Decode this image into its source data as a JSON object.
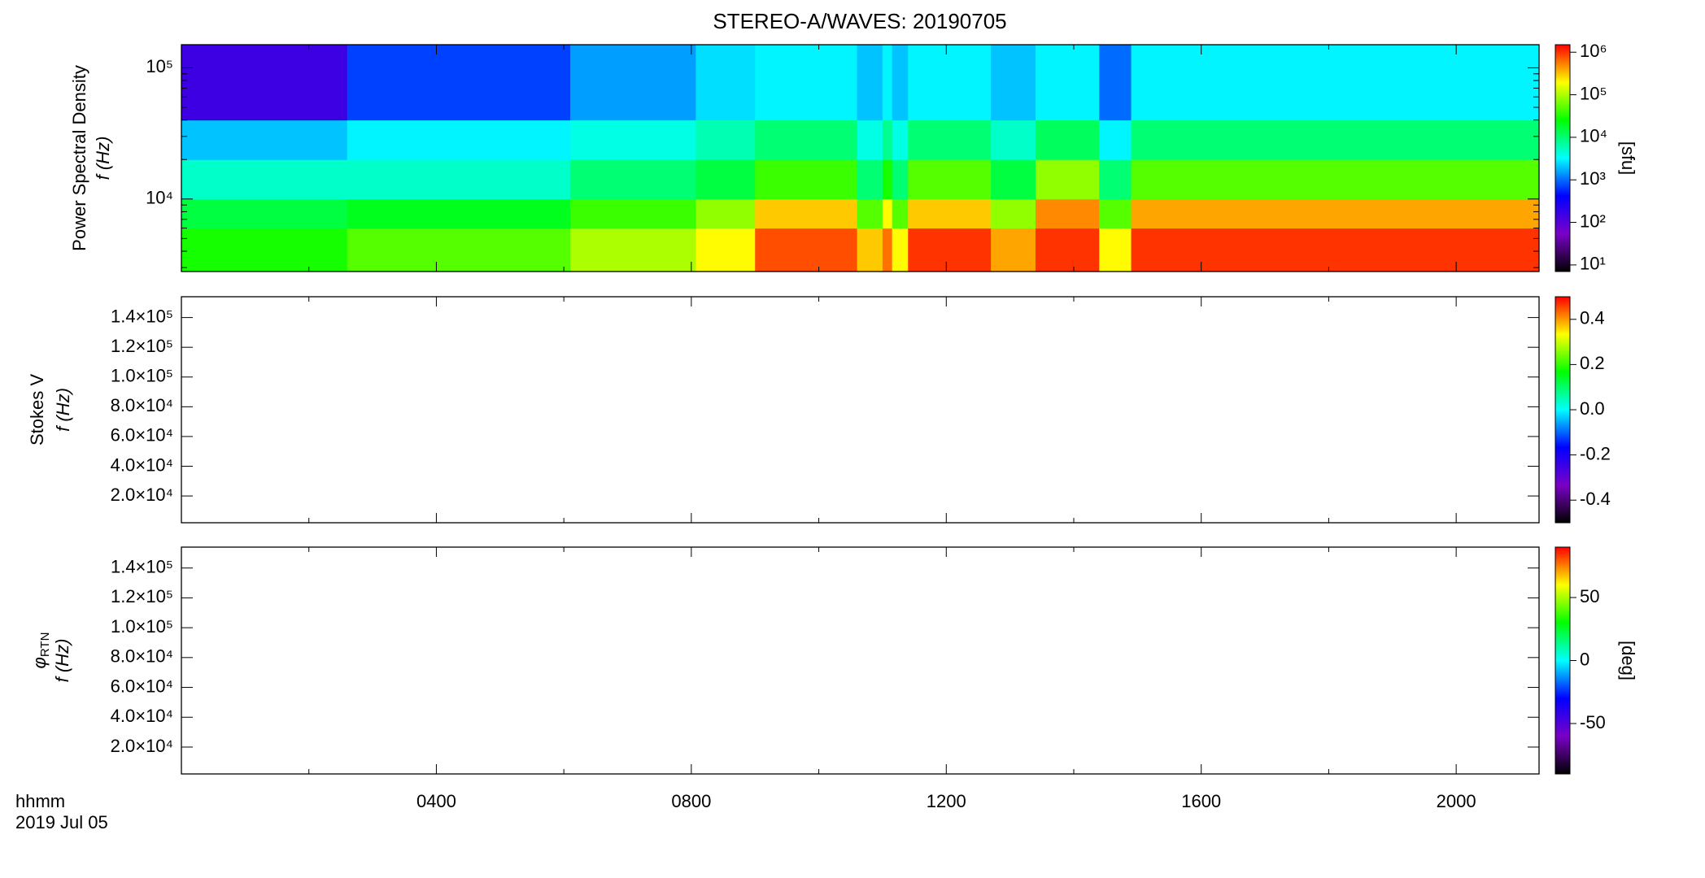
{
  "chart_data": {
    "type": "stacked-spectrogram",
    "title": "STEREO-A/WAVES: 20190705",
    "xlabel": "hhmm",
    "date": "2019 Jul 05",
    "xlim": [
      0,
      21.3
    ],
    "xticks": [
      {
        "value": 4,
        "label": "0400"
      },
      {
        "value": 8,
        "label": "0800"
      },
      {
        "value": 12,
        "label": "1200"
      },
      {
        "value": 16,
        "label": "1600"
      },
      {
        "value": 20,
        "label": "2000"
      }
    ],
    "xminorticks": [
      2,
      6,
      10,
      14,
      18
    ],
    "colormap": [
      "#000000",
      "#7a00c8",
      "#0000ff",
      "#00ffff",
      "#00ff00",
      "#ffff00",
      "#ff0000"
    ],
    "panels": [
      {
        "type": "heatmap",
        "ylabel": [
          "Power Spectral Density",
          "f (Hz)"
        ],
        "ylog": true,
        "ylim": [
          2800,
          150000
        ],
        "yticks": [
          {
            "value": 10000,
            "label": "10⁴"
          },
          {
            "value": 100000,
            "label": "10⁵"
          }
        ],
        "yminorticks": [
          3000,
          4000,
          5000,
          6000,
          7000,
          8000,
          9000,
          20000,
          30000,
          40000,
          50000,
          60000,
          70000,
          80000,
          90000
        ],
        "x_edges": [
          0,
          2.6,
          6.1,
          8.07,
          9.0,
          10.6,
          11.0,
          11.15,
          11.4,
          12.7,
          13.4,
          14.4,
          14.9,
          21.3
        ],
        "y_edges": [
          2800,
          6000,
          10000,
          20000,
          40000,
          150000
        ],
        "values": [
          [
            30000,
            15000,
            5000,
            2000,
            150
          ],
          [
            50000,
            20000,
            5000,
            3000,
            700
          ],
          [
            100000,
            40000,
            10000,
            4000,
            1500
          ],
          [
            200000,
            80000,
            15000,
            6000,
            2500
          ],
          [
            800000,
            300000,
            40000,
            10000,
            3000
          ],
          [
            300000,
            50000,
            10000,
            4000,
            2000
          ],
          [
            600000,
            200000,
            30000,
            8000,
            3000
          ],
          [
            200000,
            50000,
            10000,
            4000,
            2000
          ],
          [
            1000000,
            300000,
            50000,
            10000,
            3000
          ],
          [
            400000,
            80000,
            15000,
            5000,
            2000
          ],
          [
            1000000,
            500000,
            80000,
            12000,
            3000
          ],
          [
            200000,
            50000,
            10000,
            3000,
            1000
          ],
          [
            1000000,
            400000,
            50000,
            10000,
            3000
          ]
        ],
        "colorbar": {
          "label": "[sfu]",
          "log": true,
          "lim": [
            7,
            1500000
          ],
          "ticks": [
            {
              "value": 10,
              "label": "10¹"
            },
            {
              "value": 100,
              "label": "10²"
            },
            {
              "value": 1000,
              "label": "10³"
            },
            {
              "value": 10000,
              "label": "10⁴"
            },
            {
              "value": 100000,
              "label": "10⁵"
            },
            {
              "value": 1000000,
              "label": "10⁶"
            }
          ]
        }
      },
      {
        "type": "heatmap",
        "ylabel": [
          "Stokes V",
          "f (Hz)"
        ],
        "ylog": false,
        "ylim": [
          2000,
          154000
        ],
        "yticks": [
          {
            "value": 20000,
            "label": "2.0×10⁴"
          },
          {
            "value": 40000,
            "label": "4.0×10⁴"
          },
          {
            "value": 60000,
            "label": "6.0×10⁴"
          },
          {
            "value": 80000,
            "label": "8.0×10⁴"
          },
          {
            "value": 100000,
            "label": "1.0×10⁵"
          },
          {
            "value": 120000,
            "label": "1.2×10⁵"
          },
          {
            "value": 140000,
            "label": "1.4×10⁵"
          }
        ],
        "colorbar": {
          "log": false,
          "lim": [
            -0.5,
            0.5
          ],
          "ticks": [
            -0.4,
            -0.2,
            {
              "value": 0,
              "label": "0.0"
            },
            0.2,
            0.4
          ]
        }
      },
      {
        "type": "heatmap",
        "ylabel": [
          "φ",
          "f (Hz)"
        ],
        "ylabel_subscript": "RTN",
        "ylog": false,
        "ylim": [
          2000,
          154000
        ],
        "yticks": [
          {
            "value": 20000,
            "label": "2.0×10⁴"
          },
          {
            "value": 40000,
            "label": "4.0×10⁴"
          },
          {
            "value": 60000,
            "label": "6.0×10⁴"
          },
          {
            "value": 80000,
            "label": "8.0×10⁴"
          },
          {
            "value": 100000,
            "label": "1.0×10⁵"
          },
          {
            "value": 120000,
            "label": "1.2×10⁵"
          },
          {
            "value": 140000,
            "label": "1.4×10⁵"
          }
        ],
        "colorbar": {
          "label": "[deg]",
          "log": false,
          "lim": [
            -90,
            90
          ],
          "ticks": [
            -50,
            0,
            50
          ]
        }
      }
    ]
  }
}
